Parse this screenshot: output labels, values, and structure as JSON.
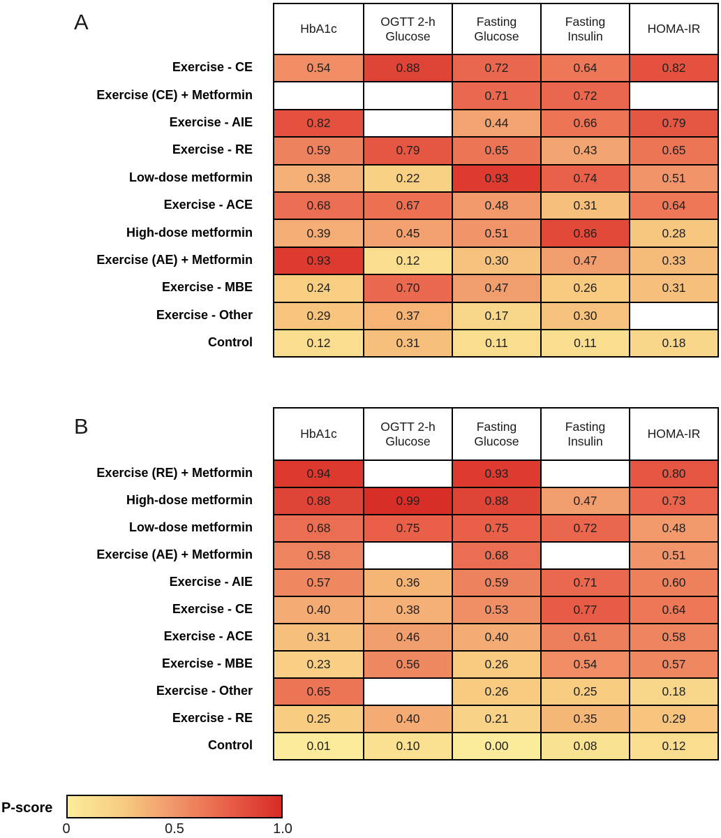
{
  "legend": {
    "label": "P-score",
    "ticks": [
      "0",
      "0.5",
      "1.0"
    ],
    "range": [
      0,
      1
    ]
  },
  "colors": {
    "border": "#000000",
    "blank_cell": "#ffffff",
    "scale_stops": [
      {
        "t": 0.0,
        "color": "#FBEC9B"
      },
      {
        "t": 0.25,
        "color": "#F8CD82"
      },
      {
        "t": 0.5,
        "color": "#F1966A"
      },
      {
        "t": 0.75,
        "color": "#E95F48"
      },
      {
        "t": 1.0,
        "color": "#D82C26"
      }
    ]
  },
  "chart_data": [
    {
      "type": "heatmap",
      "title": "A",
      "columns": [
        "HbA1c",
        "OGTT 2-h Glucose",
        "Fasting Glucose",
        "Fasting Insulin",
        "HOMA-IR"
      ],
      "rows": [
        "Exercise - CE",
        "Exercise (CE) + Metformin",
        "Exercise - AIE",
        "Exercise - RE",
        "Low-dose metformin",
        "Exercise - ACE",
        "High-dose metformin",
        "Exercise (AE) + Metformin",
        "Exercise - MBE",
        "Exercise - Other",
        "Control"
      ],
      "values": [
        [
          0.54,
          0.88,
          0.72,
          0.64,
          0.82
        ],
        [
          null,
          null,
          0.71,
          0.72,
          null
        ],
        [
          0.82,
          null,
          0.44,
          0.66,
          0.79
        ],
        [
          0.59,
          0.79,
          0.65,
          0.43,
          0.65
        ],
        [
          0.38,
          0.22,
          0.93,
          0.74,
          0.51
        ],
        [
          0.68,
          0.67,
          0.48,
          0.31,
          0.64
        ],
        [
          0.39,
          0.45,
          0.51,
          0.86,
          0.28
        ],
        [
          0.93,
          0.12,
          0.3,
          0.47,
          0.33
        ],
        [
          0.24,
          0.7,
          0.47,
          0.26,
          0.31
        ],
        [
          0.29,
          0.37,
          0.17,
          0.3,
          null
        ],
        [
          0.12,
          0.31,
          0.11,
          0.11,
          0.18
        ]
      ],
      "colorbar": {
        "label": "P-score",
        "range": [
          0,
          1
        ],
        "ticks": [
          0,
          0.5,
          1.0
        ]
      }
    },
    {
      "type": "heatmap",
      "title": "B",
      "columns": [
        "HbA1c",
        "OGTT 2-h Glucose",
        "Fasting Glucose",
        "Fasting Insulin",
        "HOMA-IR"
      ],
      "rows": [
        "Exercise (RE) + Metformin",
        "High-dose metformin",
        "Low-dose metformin",
        "Exercise (AE) + Metformin",
        "Exercise - AIE",
        "Exercise - CE",
        "Exercise - ACE",
        "Exercise - MBE",
        "Exercise - Other",
        "Exercise - RE",
        "Control"
      ],
      "values": [
        [
          0.94,
          null,
          0.93,
          null,
          0.8
        ],
        [
          0.88,
          0.99,
          0.88,
          0.47,
          0.73
        ],
        [
          0.68,
          0.75,
          0.75,
          0.72,
          0.48
        ],
        [
          0.58,
          null,
          0.68,
          null,
          0.51
        ],
        [
          0.57,
          0.36,
          0.59,
          0.71,
          0.6
        ],
        [
          0.4,
          0.38,
          0.53,
          0.77,
          0.64
        ],
        [
          0.31,
          0.46,
          0.4,
          0.61,
          0.58
        ],
        [
          0.23,
          0.56,
          0.26,
          0.54,
          0.57
        ],
        [
          0.65,
          null,
          0.26,
          0.25,
          0.18
        ],
        [
          0.25,
          0.4,
          0.21,
          0.35,
          0.29
        ],
        [
          0.01,
          0.1,
          0.0,
          0.08,
          0.12
        ]
      ],
      "colorbar": {
        "label": "P-score",
        "range": [
          0,
          1
        ],
        "ticks": [
          0,
          0.5,
          1.0
        ]
      }
    }
  ]
}
